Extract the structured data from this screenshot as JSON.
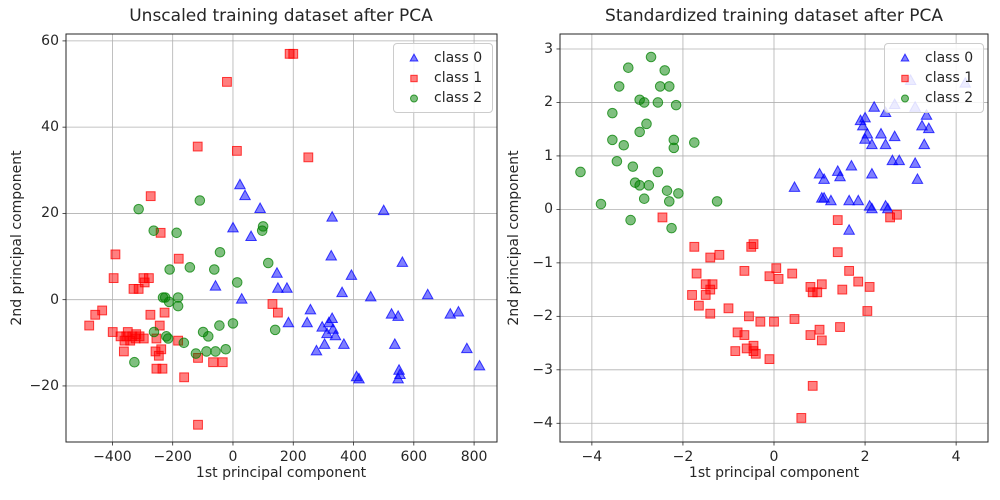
{
  "colors": {
    "class0": "#0000ff",
    "class1": "#ff0000",
    "class2": "#008000",
    "grid": "#b0b0b0",
    "spine": "#262626",
    "text": "#262626",
    "legend_border": "#cccccc"
  },
  "chart_data": [
    {
      "type": "scatter",
      "title": "Unscaled training dataset after PCA",
      "xlabel": "1st principal component",
      "ylabel": "2nd principal component",
      "xlim": [
        -554,
        876
      ],
      "ylim": [
        -33,
        61.6
      ],
      "xticks": [
        -400,
        -200,
        0,
        200,
        400,
        600,
        800
      ],
      "yticks": [
        -20,
        0,
        20,
        40,
        60
      ],
      "grid": true,
      "legend": {
        "position": "upper right",
        "entries": [
          {
            "label": "class 0",
            "marker": "triangle",
            "color": "#0000ff"
          },
          {
            "label": "class 1",
            "marker": "square",
            "color": "#ff0000"
          },
          {
            "label": "class 2",
            "marker": "circle",
            "color": "#008000"
          }
        ]
      },
      "series": [
        {
          "name": "class 0",
          "marker": "triangle",
          "color": "#0000ff",
          "points": [
            [
              23,
              26.5
            ],
            [
              40,
              24
            ],
            [
              90,
              21
            ],
            [
              0,
              16.5
            ],
            [
              60,
              14.5
            ],
            [
              329,
              19
            ],
            [
              500,
              20.5
            ],
            [
              326,
              10
            ],
            [
              562,
              8.5
            ],
            [
              393,
              5.5
            ],
            [
              146,
              6
            ],
            [
              149,
              2.5
            ],
            [
              179,
              2.5
            ],
            [
              362,
              1.5
            ],
            [
              457,
              0.5
            ],
            [
              646,
              1
            ],
            [
              29,
              0
            ],
            [
              -58,
              3
            ],
            [
              257,
              -2.5
            ],
            [
              246,
              -5.5
            ],
            [
              184,
              -5.5
            ],
            [
              296,
              -6.5
            ],
            [
              318,
              -5.5
            ],
            [
              329,
              -4.5
            ],
            [
              332,
              -7
            ],
            [
              312,
              -8
            ],
            [
              340,
              -8.5
            ],
            [
              304,
              -10.5
            ],
            [
              277,
              -12
            ],
            [
              368,
              -10.5
            ],
            [
              526,
              -3.5
            ],
            [
              548,
              -4
            ],
            [
              537,
              -10.5
            ],
            [
              721,
              -3.5
            ],
            [
              748,
              -3
            ],
            [
              776,
              -11.5
            ],
            [
              818,
              -15.5
            ],
            [
              410,
              -18
            ],
            [
              418,
              -18.5
            ],
            [
              551,
              -16.5
            ],
            [
              554,
              -17.5
            ],
            [
              548,
              -18.5
            ]
          ]
        },
        {
          "name": "class 1",
          "marker": "square",
          "color": "#ff0000",
          "points": [
            [
              188,
              57
            ],
            [
              200,
              57
            ],
            [
              -20,
              50.5
            ],
            [
              -117,
              35.5
            ],
            [
              13,
              34.5
            ],
            [
              250,
              33
            ],
            [
              -273,
              24
            ],
            [
              -240,
              15.5
            ],
            [
              -390,
              10.5
            ],
            [
              -180,
              9.5
            ],
            [
              -396,
              5
            ],
            [
              -297,
              5
            ],
            [
              -279,
              5
            ],
            [
              -293,
              4
            ],
            [
              -330,
              2.5
            ],
            [
              -313,
              2.5
            ],
            [
              131,
              -1
            ],
            [
              149,
              -3
            ],
            [
              -434,
              -2.5
            ],
            [
              -457,
              -3.5
            ],
            [
              -477,
              -6
            ],
            [
              -274,
              -3.5
            ],
            [
              -227,
              -3
            ],
            [
              -243,
              -6
            ],
            [
              -349,
              -7.5
            ],
            [
              -399,
              -7.5
            ],
            [
              -373,
              -8.5
            ],
            [
              -354,
              -8.5
            ],
            [
              -334,
              -8.5
            ],
            [
              -323,
              -9
            ],
            [
              -341,
              -9.5
            ],
            [
              -360,
              -9.5
            ],
            [
              -310,
              -8.5
            ],
            [
              -296,
              -9
            ],
            [
              -321,
              -8
            ],
            [
              -254,
              -9
            ],
            [
              -182,
              -9.5
            ],
            [
              -362,
              -12
            ],
            [
              -257,
              -12
            ],
            [
              -238,
              -11.5
            ],
            [
              -246,
              -13
            ],
            [
              -116,
              -13.5
            ],
            [
              -66,
              -14.5
            ],
            [
              -34,
              -14.5
            ],
            [
              -254,
              -16
            ],
            [
              -234,
              -16
            ],
            [
              -162,
              -18
            ],
            [
              -116,
              -29
            ]
          ]
        },
        {
          "name": "class 2",
          "marker": "circle",
          "color": "#008000",
          "points": [
            [
              -313,
              21
            ],
            [
              -110,
              23
            ],
            [
              -263,
              16
            ],
            [
              -187,
              15.5
            ],
            [
              100,
              17
            ],
            [
              97,
              16
            ],
            [
              -43,
              11
            ],
            [
              117,
              8.5
            ],
            [
              -210,
              7
            ],
            [
              -143,
              7.5
            ],
            [
              -62,
              7
            ],
            [
              14,
              4
            ],
            [
              -232,
              0.5
            ],
            [
              -225,
              0.5
            ],
            [
              -212,
              -0.5
            ],
            [
              -182,
              0.5
            ],
            [
              -182,
              -1.5
            ],
            [
              -262,
              -7.5
            ],
            [
              -221,
              -8.5
            ],
            [
              -215,
              -9
            ],
            [
              -163,
              -10
            ],
            [
              -99,
              -7.5
            ],
            [
              -82,
              -8.5
            ],
            [
              -45,
              -6
            ],
            [
              0,
              -5.5
            ],
            [
              140,
              -7
            ],
            [
              -327,
              -14.5
            ],
            [
              -123,
              -12.5
            ],
            [
              -88,
              -12
            ],
            [
              -58,
              -12
            ],
            [
              -24,
              -11.5
            ]
          ]
        }
      ]
    },
    {
      "type": "scatter",
      "title": "Standardized training dataset after PCA",
      "xlabel": "1st principal component",
      "ylabel": "2nd principal component",
      "xlim": [
        -4.7,
        4.7
      ],
      "ylim": [
        -4.35,
        3.28
      ],
      "xticks": [
        -4,
        -2,
        0,
        2,
        4
      ],
      "yticks": [
        -4,
        -3,
        -2,
        -1,
        0,
        1,
        2,
        3
      ],
      "grid": true,
      "legend": {
        "position": "upper right",
        "entries": [
          {
            "label": "class 0",
            "marker": "triangle",
            "color": "#0000ff"
          },
          {
            "label": "class 1",
            "marker": "square",
            "color": "#ff0000"
          },
          {
            "label": "class 2",
            "marker": "circle",
            "color": "#008000"
          }
        ]
      },
      "series": [
        {
          "name": "class 0",
          "marker": "triangle",
          "color": "#0000ff",
          "points": [
            [
              2.2,
              1.9
            ],
            [
              2.45,
              1.8
            ],
            [
              3.1,
              1.9
            ],
            [
              3.35,
              1.75
            ],
            [
              3.0,
              2.4
            ],
            [
              4.2,
              2.35
            ],
            [
              2.65,
              1.95
            ],
            [
              1.9,
              1.65
            ],
            [
              2.0,
              1.7
            ],
            [
              1.95,
              1.55
            ],
            [
              3.25,
              1.55
            ],
            [
              3.4,
              1.5
            ],
            [
              2.05,
              1.4
            ],
            [
              2.0,
              1.3
            ],
            [
              2.35,
              1.4
            ],
            [
              2.65,
              1.35
            ],
            [
              2.15,
              1.2
            ],
            [
              2.45,
              1.2
            ],
            [
              3.3,
              1.2
            ],
            [
              2.6,
              0.9
            ],
            [
              2.75,
              0.9
            ],
            [
              3.1,
              0.85
            ],
            [
              1.7,
              0.8
            ],
            [
              1.4,
              0.7
            ],
            [
              1.45,
              0.6
            ],
            [
              1.0,
              0.65
            ],
            [
              1.1,
              0.55
            ],
            [
              2.15,
              0.65
            ],
            [
              3.15,
              0.55
            ],
            [
              0.45,
              0.4
            ],
            [
              1.05,
              0.2
            ],
            [
              1.1,
              0.2
            ],
            [
              1.25,
              0.15
            ],
            [
              1.65,
              0.15
            ],
            [
              1.85,
              0.15
            ],
            [
              2.1,
              0.05
            ],
            [
              2.15,
              0.0
            ],
            [
              2.45,
              0.05
            ],
            [
              2.5,
              0.0
            ],
            [
              1.65,
              -0.4
            ]
          ]
        },
        {
          "name": "class 1",
          "marker": "square",
          "color": "#ff0000",
          "points": [
            [
              -2.45,
              -0.15
            ],
            [
              1.4,
              -0.2
            ],
            [
              2.55,
              -0.15
            ],
            [
              2.7,
              -0.1
            ],
            [
              -1.75,
              -0.7
            ],
            [
              -0.5,
              -0.7
            ],
            [
              -0.45,
              -0.65
            ],
            [
              1.4,
              -0.8
            ],
            [
              -1.4,
              -0.9
            ],
            [
              -1.2,
              -0.85
            ],
            [
              -0.65,
              -1.15
            ],
            [
              -1.7,
              -1.2
            ],
            [
              -0.1,
              -1.25
            ],
            [
              0.05,
              -1.1
            ],
            [
              0.1,
              -1.3
            ],
            [
              0.4,
              -1.2
            ],
            [
              1.65,
              -1.15
            ],
            [
              1.85,
              -1.35
            ],
            [
              -1.5,
              -1.4
            ],
            [
              -1.35,
              -1.4
            ],
            [
              -1.4,
              -1.5
            ],
            [
              -1.8,
              -1.6
            ],
            [
              -1.5,
              -1.6
            ],
            [
              0.8,
              -1.45
            ],
            [
              1.05,
              -1.4
            ],
            [
              0.85,
              -1.55
            ],
            [
              0.95,
              -1.55
            ],
            [
              1.5,
              -1.5
            ],
            [
              2.1,
              -1.45
            ],
            [
              -1.65,
              -1.8
            ],
            [
              -1.4,
              -1.95
            ],
            [
              -1.0,
              -1.85
            ],
            [
              -0.55,
              -2.0
            ],
            [
              -0.3,
              -2.1
            ],
            [
              0.0,
              -2.1
            ],
            [
              2.05,
              -1.9
            ],
            [
              0.45,
              -2.05
            ],
            [
              1.45,
              -2.2
            ],
            [
              0.8,
              -2.35
            ],
            [
              1.0,
              -2.25
            ],
            [
              1.05,
              -2.45
            ],
            [
              -0.8,
              -2.3
            ],
            [
              -0.65,
              -2.35
            ],
            [
              -0.85,
              -2.65
            ],
            [
              -0.6,
              -2.6
            ],
            [
              -0.45,
              -2.55
            ],
            [
              -0.45,
              -2.65
            ],
            [
              -0.4,
              -2.7
            ],
            [
              -0.1,
              -2.8
            ],
            [
              0.85,
              -3.3
            ],
            [
              0.6,
              -3.9
            ]
          ]
        },
        {
          "name": "class 2",
          "marker": "circle",
          "color": "#008000",
          "points": [
            [
              -2.7,
              2.85
            ],
            [
              -3.2,
              2.65
            ],
            [
              -2.4,
              2.6
            ],
            [
              -2.5,
              2.3
            ],
            [
              -2.3,
              2.3
            ],
            [
              -3.4,
              2.3
            ],
            [
              -2.95,
              2.05
            ],
            [
              -2.85,
              2.0
            ],
            [
              -2.55,
              2.0
            ],
            [
              -2.15,
              1.95
            ],
            [
              -3.55,
              1.8
            ],
            [
              -2.8,
              1.6
            ],
            [
              -2.95,
              1.45
            ],
            [
              -3.55,
              1.3
            ],
            [
              -3.3,
              1.2
            ],
            [
              -2.2,
              1.3
            ],
            [
              -2.2,
              1.15
            ],
            [
              -1.75,
              1.25
            ],
            [
              -3.45,
              0.9
            ],
            [
              -3.1,
              0.8
            ],
            [
              -4.25,
              0.7
            ],
            [
              -2.55,
              0.7
            ],
            [
              -3.05,
              0.5
            ],
            [
              -2.95,
              0.45
            ],
            [
              -2.75,
              0.45
            ],
            [
              -2.35,
              0.35
            ],
            [
              -2.1,
              0.3
            ],
            [
              -2.85,
              0.2
            ],
            [
              -2.3,
              0.15
            ],
            [
              -3.8,
              0.1
            ],
            [
              -1.25,
              0.15
            ],
            [
              -3.15,
              -0.2
            ],
            [
              -2.25,
              -0.35
            ]
          ]
        }
      ]
    }
  ]
}
